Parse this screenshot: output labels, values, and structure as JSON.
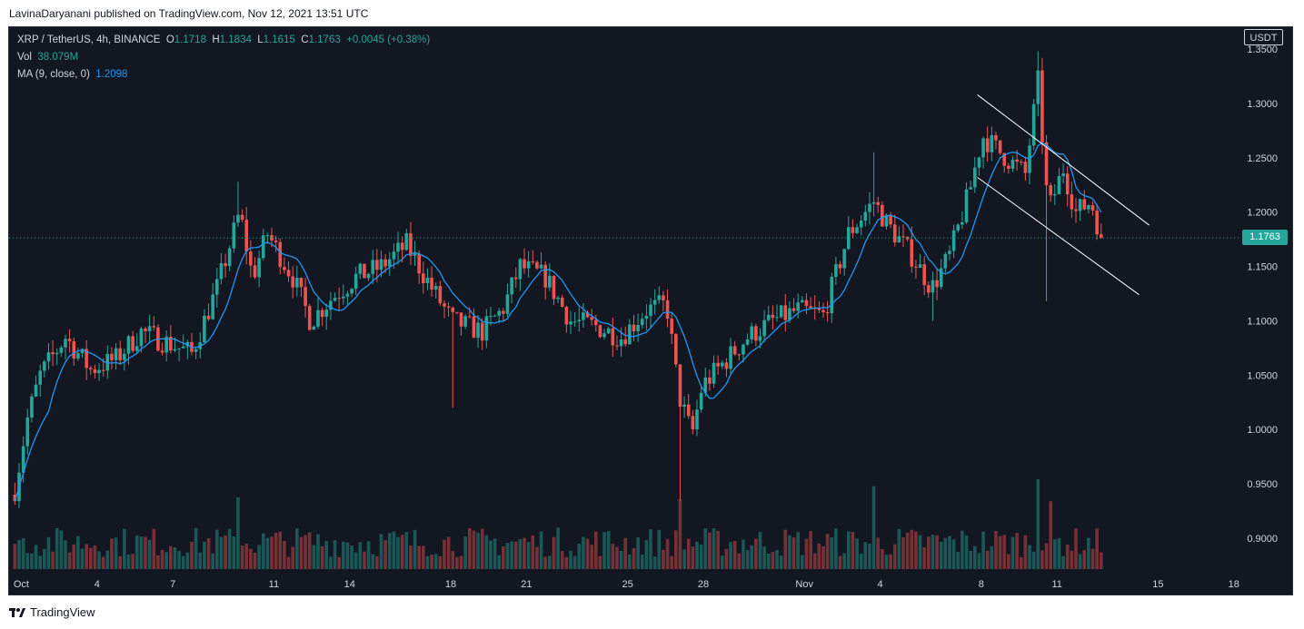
{
  "caption": "LavinaDaryanani published on TradingView.com, Nov 12, 2021 13:51 UTC",
  "legend": {
    "symbol": "XRP / TetherUS, 4h, BINANCE",
    "o_label": "O",
    "o": "1.1718",
    "h_label": "H",
    "h": "1.1834",
    "l_label": "L",
    "l": "1.1615",
    "c_label": "C",
    "c": "1.1763",
    "change": "+0.0045 (+0.38%)",
    "vol_label": "Vol",
    "vol": "38.079M",
    "ma_label": "MA (9, close, 0)",
    "ma": "1.2098"
  },
  "price_unit": "USDT",
  "current_price_label": "1.1763",
  "brand": "TradingView",
  "colors": {
    "up": "#26a69a",
    "down": "#ef5350",
    "ma": "#2196f3",
    "background": "#131722",
    "text": "#d1d4dc"
  },
  "chart_data": {
    "type": "candlestick",
    "ylim": [
      0.87,
      1.36
    ],
    "yticks": [
      "1.3500",
      "1.3000",
      "1.2500",
      "1.2000",
      "1.1500",
      "1.1000",
      "1.0500",
      "1.0000",
      "0.9500",
      "0.9000"
    ],
    "xticks": [
      {
        "label": "Oct",
        "day": 1
      },
      {
        "label": "4",
        "day": 4
      },
      {
        "label": "7",
        "day": 7
      },
      {
        "label": "11",
        "day": 11
      },
      {
        "label": "14",
        "day": 14
      },
      {
        "label": "18",
        "day": 18
      },
      {
        "label": "21",
        "day": 21
      },
      {
        "label": "25",
        "day": 25
      },
      {
        "label": "28",
        "day": 28
      },
      {
        "label": "Nov",
        "day": 32
      },
      {
        "label": "4",
        "day": 35
      },
      {
        "label": "8",
        "day": 39
      },
      {
        "label": "11",
        "day": 42
      },
      {
        "label": "15",
        "day": 46
      },
      {
        "label": "18",
        "day": 49
      }
    ],
    "current_price": 1.1763,
    "close_anchors": [
      {
        "day": 1.0,
        "close": 0.945
      },
      {
        "day": 1.5,
        "close": 1.01
      },
      {
        "day": 2.0,
        "close": 1.05
      },
      {
        "day": 3.0,
        "close": 1.085
      },
      {
        "day": 4.0,
        "close": 1.055
      },
      {
        "day": 5.0,
        "close": 1.065
      },
      {
        "day": 6.0,
        "close": 1.09
      },
      {
        "day": 7.0,
        "close": 1.08
      },
      {
        "day": 8.0,
        "close": 1.07
      },
      {
        "day": 9.0,
        "close": 1.13
      },
      {
        "day": 9.9,
        "close": 1.2
      },
      {
        "day": 10.4,
        "close": 1.14
      },
      {
        "day": 11.0,
        "close": 1.18
      },
      {
        "day": 12.0,
        "close": 1.14
      },
      {
        "day": 12.7,
        "close": 1.1
      },
      {
        "day": 13.5,
        "close": 1.12
      },
      {
        "day": 14.5,
        "close": 1.14
      },
      {
        "day": 15.5,
        "close": 1.15
      },
      {
        "day": 16.5,
        "close": 1.17
      },
      {
        "day": 17.5,
        "close": 1.13
      },
      {
        "day": 18.3,
        "close": 1.1
      },
      {
        "day": 19.5,
        "close": 1.09
      },
      {
        "day": 20.3,
        "close": 1.11
      },
      {
        "day": 21.0,
        "close": 1.15
      },
      {
        "day": 22.0,
        "close": 1.14
      },
      {
        "day": 23.0,
        "close": 1.1
      },
      {
        "day": 24.0,
        "close": 1.095
      },
      {
        "day": 25.0,
        "close": 1.085
      },
      {
        "day": 26.0,
        "close": 1.11
      },
      {
        "day": 26.8,
        "close": 1.115
      },
      {
        "day": 27.3,
        "close": 1.03
      },
      {
        "day": 27.8,
        "close": 0.995
      },
      {
        "day": 28.2,
        "close": 1.04
      },
      {
        "day": 29.0,
        "close": 1.06
      },
      {
        "day": 30.0,
        "close": 1.085
      },
      {
        "day": 31.0,
        "close": 1.1
      },
      {
        "day": 32.0,
        "close": 1.11
      },
      {
        "day": 33.0,
        "close": 1.105
      },
      {
        "day": 34.0,
        "close": 1.18
      },
      {
        "day": 35.0,
        "close": 1.21
      },
      {
        "day": 35.5,
        "close": 1.19
      },
      {
        "day": 36.5,
        "close": 1.16
      },
      {
        "day": 37.3,
        "close": 1.13
      },
      {
        "day": 38.0,
        "close": 1.16
      },
      {
        "day": 38.8,
        "close": 1.22
      },
      {
        "day": 39.3,
        "close": 1.27
      },
      {
        "day": 40.0,
        "close": 1.255
      },
      {
        "day": 41.0,
        "close": 1.235
      },
      {
        "day": 41.5,
        "close": 1.32
      },
      {
        "day": 41.9,
        "close": 1.2
      },
      {
        "day": 42.5,
        "close": 1.24
      },
      {
        "day": 43.0,
        "close": 1.2
      },
      {
        "day": 43.6,
        "close": 1.21
      },
      {
        "day": 44.0,
        "close": 1.1763
      }
    ],
    "volume_spikes": [
      {
        "day": 9.9,
        "level": 0.72
      },
      {
        "day": 27.4,
        "level": 0.7
      },
      {
        "day": 35.0,
        "level": 0.83
      },
      {
        "day": 41.5,
        "level": 0.9
      },
      {
        "day": 42.0,
        "level": 0.68
      }
    ],
    "channel": {
      "upper": [
        {
          "day": 39.1,
          "price": 1.308
        },
        {
          "day": 45.9,
          "price": 1.188
        }
      ],
      "lower": [
        {
          "day": 39.1,
          "price": 1.232
        },
        {
          "day": 45.5,
          "price": 1.124
        }
      ]
    }
  }
}
